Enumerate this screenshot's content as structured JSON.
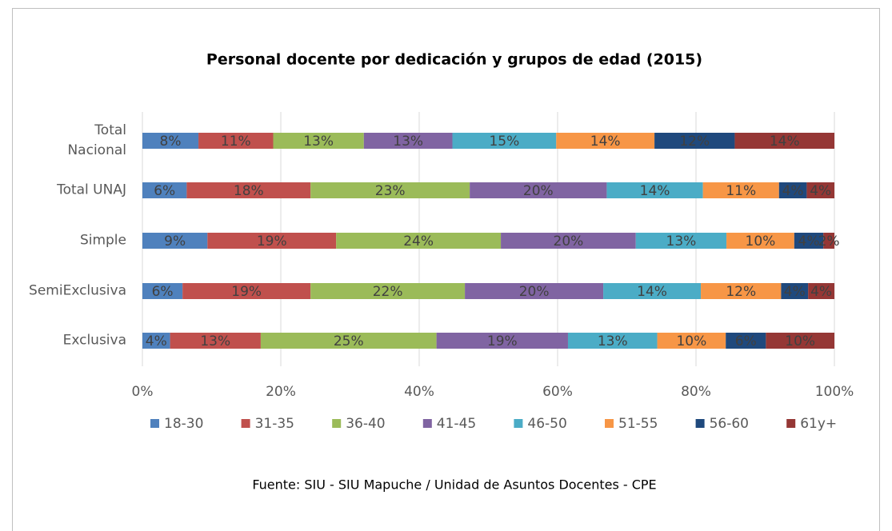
{
  "chart_data": {
    "type": "stacked_bar_horizontal",
    "title": "Personal docente por dedicación y grupos de edad (2015)",
    "source": "Fuente: SIU - SIU Mapuche / Unidad de Asuntos Docentes - CPE",
    "categories": [
      "Total\nNacional",
      "Total UNAJ",
      "Simple",
      "SemiExclusiva",
      "Exclusiva"
    ],
    "xlim": [
      0,
      100
    ],
    "xticks": [
      {
        "value": 0,
        "label": "0%"
      },
      {
        "value": 20,
        "label": "20%"
      },
      {
        "value": 40,
        "label": "40%"
      },
      {
        "value": 60,
        "label": "60%"
      },
      {
        "value": 80,
        "label": "80%"
      },
      {
        "value": 100,
        "label": "100%"
      }
    ],
    "grid": true,
    "legend": "bottom",
    "series": [
      {
        "name": "18-30",
        "color": "#4f81bd",
        "values": [
          8.1,
          6.4,
          9.4,
          5.8,
          4.0
        ],
        "value_labels": [
          "8%",
          "6%",
          "9%",
          "6%",
          "4%"
        ]
      },
      {
        "name": "31-35",
        "color": "#c0504d",
        "values": [
          10.8,
          17.9,
          18.6,
          18.5,
          13.1
        ],
        "value_labels": [
          "11%",
          "18%",
          "19%",
          "19%",
          "13%"
        ]
      },
      {
        "name": "36-40",
        "color": "#9bbb59",
        "values": [
          13.1,
          23.0,
          23.8,
          22.3,
          25.4
        ],
        "value_labels": [
          "13%",
          "23%",
          "24%",
          "22%",
          "25%"
        ]
      },
      {
        "name": "41-45",
        "color": "#8064a2",
        "values": [
          12.8,
          19.8,
          19.5,
          20.0,
          19.0
        ],
        "value_labels": [
          "13%",
          "20%",
          "20%",
          "20%",
          "19%"
        ]
      },
      {
        "name": "46-50",
        "color": "#4bacc6",
        "values": [
          15.0,
          13.9,
          13.1,
          14.1,
          12.9
        ],
        "value_labels": [
          "15%",
          "14%",
          "13%",
          "14%",
          "13%"
        ]
      },
      {
        "name": "51-55",
        "color": "#f79646",
        "values": [
          14.2,
          11.0,
          9.8,
          11.6,
          9.9
        ],
        "value_labels": [
          "14%",
          "11%",
          "10%",
          "12%",
          "10%"
        ]
      },
      {
        "name": "56-60",
        "color": "#1f497d",
        "values": [
          11.6,
          4.0,
          4.2,
          3.9,
          5.8
        ],
        "value_labels": [
          "12%",
          "4%",
          "4%",
          "4%",
          "6%"
        ]
      },
      {
        "name": "61y+",
        "color": "#953735",
        "values": [
          14.4,
          4.0,
          1.6,
          3.8,
          9.9
        ],
        "value_labels": [
          "14%",
          "4%",
          "2%",
          "4%",
          "10%"
        ]
      }
    ]
  }
}
